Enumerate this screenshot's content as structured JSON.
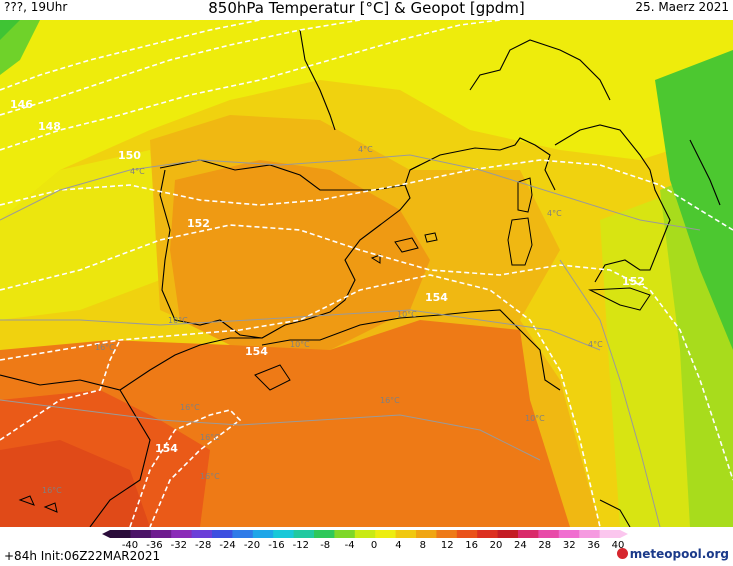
{
  "header": {
    "left": "???, 19Uhr",
    "title": "850hPa Temperatur [°C] & Geopot [gpdm]",
    "date": "25. Maerz 2021"
  },
  "footer": {
    "init": "+84h  Init:06Z22MAR2021",
    "brand": "meteopool.org"
  },
  "colorbar": {
    "ticks": [
      "-40",
      "-36",
      "-32",
      "-28",
      "-24",
      "-20",
      "-16",
      "-12",
      "-8",
      "-4",
      "0",
      "4",
      "8",
      "12",
      "16",
      "20",
      "24",
      "28",
      "32",
      "36",
      "40"
    ],
    "colors": [
      "#2a0c3a",
      "#4b1467",
      "#6e1c8f",
      "#8a2bb8",
      "#6b3fd8",
      "#3d4fe0",
      "#2f7be8",
      "#1fa6e8",
      "#19c8d8",
      "#21c9a0",
      "#2ec85a",
      "#7ed728",
      "#c9ea14",
      "#eded10",
      "#f0c810",
      "#f0a512",
      "#ee7a18",
      "#ea521a",
      "#dc3020",
      "#c41c25",
      "#d92a6a",
      "#e84aa8",
      "#f06ed0",
      "#f59ae0",
      "#fbc6ee"
    ]
  },
  "map": {
    "geopot_labels": [
      "146",
      "148",
      "150",
      "152",
      "152",
      "154",
      "154",
      "154"
    ],
    "temp_labels": [
      "4°C",
      "4°C",
      "4°C",
      "4°C",
      "10°C",
      "10°C",
      "10°C",
      "16°C",
      "16°C",
      "16°C",
      "16°C",
      "16°C",
      "16°C",
      "10°C"
    ]
  }
}
